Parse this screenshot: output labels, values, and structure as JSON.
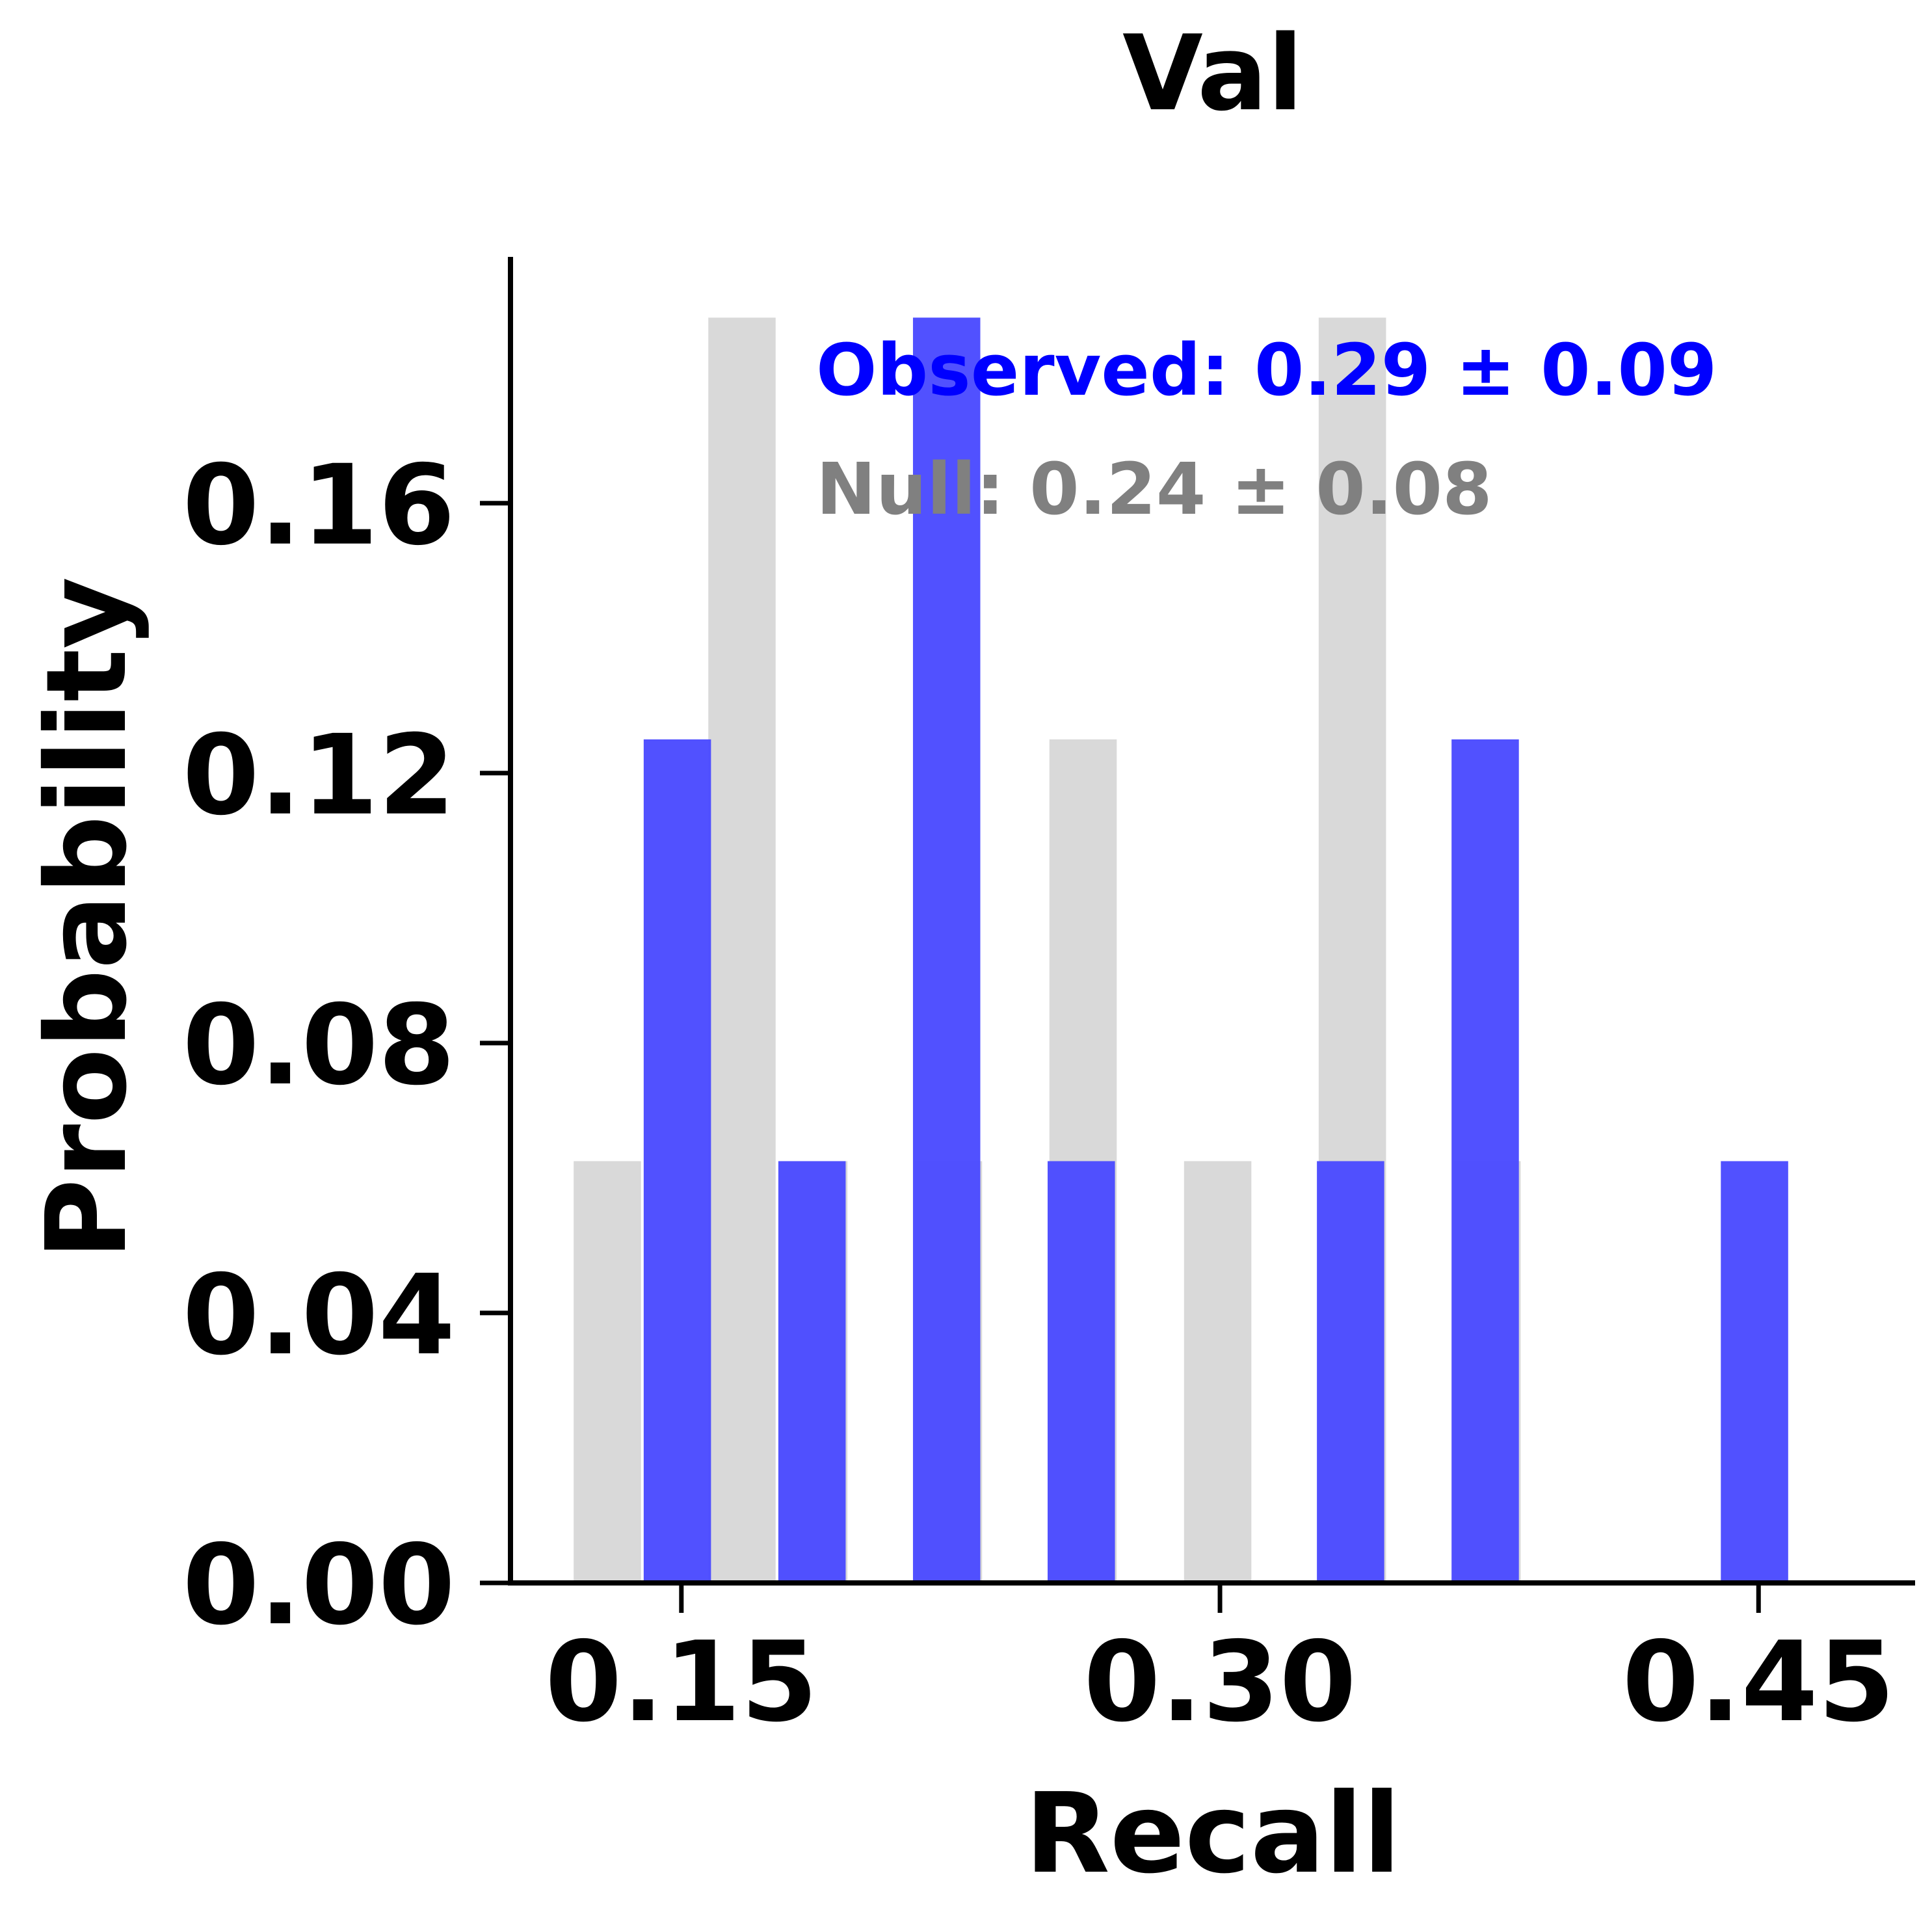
{
  "chart_data": {
    "type": "bar",
    "title": "Val",
    "xlabel": "Recall",
    "ylabel": "Probability",
    "xlim": [
      0.1024,
      0.4936
    ],
    "ylim": [
      0,
      0.1965
    ],
    "xticks": [
      0.15,
      0.3,
      0.45
    ],
    "xtick_labels": [
      "0.15",
      "0.30",
      "0.45"
    ],
    "yticks": [
      0.0,
      0.04,
      0.08,
      0.12,
      0.16
    ],
    "ytick_labels": [
      "0.00",
      "0.04",
      "0.08",
      "0.12",
      "0.16"
    ],
    "grid": false,
    "bin_width": 0.01875,
    "series": [
      {
        "color": "#d9d9d9",
        "bins": [
          {
            "left": 0.12,
            "value": 0.0625
          },
          {
            "left": 0.1575,
            "value": 0.1875
          },
          {
            "left": 0.1775,
            "value": 0.0625
          },
          {
            "left": 0.215,
            "value": 0.0625
          },
          {
            "left": 0.2525,
            "value": 0.125
          },
          {
            "left": 0.29,
            "value": 0.0625
          },
          {
            "left": 0.3275,
            "value": 0.1875
          },
          {
            "left": 0.365,
            "value": 0.0625
          }
        ]
      },
      {
        "color": "#4b4bff",
        "bins": [
          {
            "left": 0.1395,
            "value": 0.125
          },
          {
            "left": 0.177,
            "value": 0.0625
          },
          {
            "left": 0.2145,
            "value": 0.1875
          },
          {
            "left": 0.252,
            "value": 0.0625
          },
          {
            "left": 0.327,
            "value": 0.0625
          },
          {
            "left": 0.3645,
            "value": 0.125
          },
          {
            "left": 0.4395,
            "value": 0.0625
          }
        ]
      }
    ],
    "annotations": [
      {
        "text": "Observed: 0.29 ± 0.09",
        "color": "#0000ff"
      },
      {
        "text": "Null: 0.24 ± 0.08",
        "color": "#808080"
      }
    ]
  }
}
